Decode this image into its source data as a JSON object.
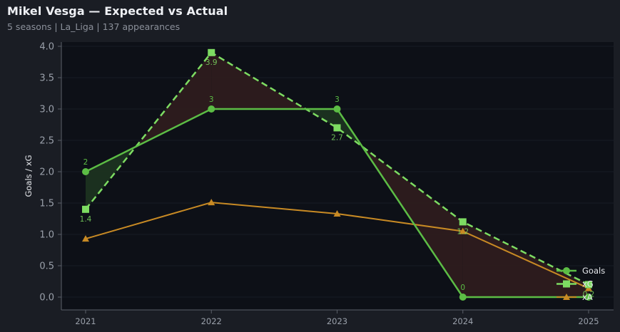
{
  "header": {
    "title": "Mikel Vesga — Expected vs Actual",
    "subtitle": "5 seasons | La_Liga | 137 appearances"
  },
  "colors": {
    "background": "#1a1d24",
    "plot_background": "#0d1017",
    "goals": "#5cbd45",
    "xg": "#7ddc62",
    "xa": "#c88a24",
    "overperform_fill": "#1c3320",
    "underperform_fill": "#2e1c1e"
  },
  "chart_data": {
    "type": "line",
    "title": "Mikel Vesga — Expected vs Actual",
    "subtitle": "5 seasons | La_Liga | 137 appearances",
    "xlabel": "",
    "ylabel": "Goals / xG",
    "x": [
      "2021",
      "2022",
      "2023",
      "2024",
      "2025"
    ],
    "yticks": [
      "0.0",
      "0.5",
      "1.0",
      "1.5",
      "2.0",
      "2.5",
      "3.0",
      "3.5",
      "4.0"
    ],
    "ylim": [
      -0.08,
      4.04
    ],
    "grid": true,
    "legend_position": "lower right",
    "series": [
      {
        "name": "Goals",
        "values": [
          2,
          3,
          3,
          0,
          0
        ],
        "style": "solid",
        "marker": "circle",
        "labels": [
          "2",
          "3",
          "3",
          "0",
          ""
        ]
      },
      {
        "name": "xG",
        "values": [
          1.4,
          3.9,
          2.7,
          1.2,
          0.2
        ],
        "style": "dashed",
        "marker": "square",
        "labels": [
          "1.4",
          "3.9",
          "2.7",
          "1.2",
          "0.2"
        ]
      },
      {
        "name": "xA",
        "values": [
          0.93,
          1.51,
          1.33,
          1.05,
          0.14
        ],
        "style": "solid",
        "marker": "triangle",
        "labels": []
      }
    ],
    "fill_between": "Goals vs xG (green where Goals > xG, red where Goals < xG)"
  },
  "legend": {
    "items": [
      {
        "label": "Goals"
      },
      {
        "label": "xG"
      },
      {
        "label": "xA"
      }
    ]
  }
}
